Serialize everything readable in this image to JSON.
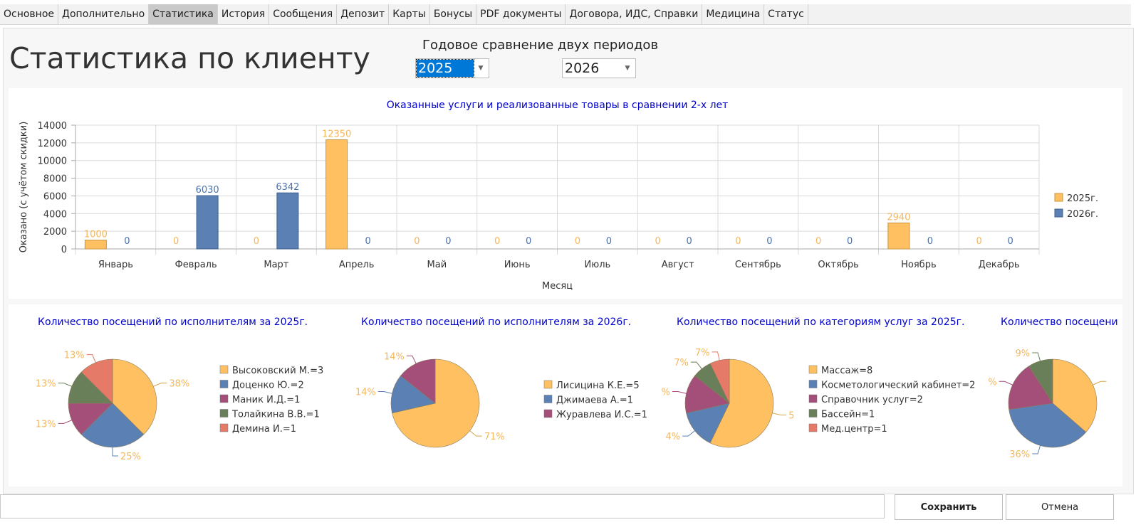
{
  "tabs": [
    {
      "label": "Основное",
      "active": false
    },
    {
      "label": "Дополнительно",
      "active": false
    },
    {
      "label": "Статистика",
      "active": true
    },
    {
      "label": "История",
      "active": false
    },
    {
      "label": "Сообщения",
      "active": false
    },
    {
      "label": "Депозит",
      "active": false
    },
    {
      "label": "Карты",
      "active": false
    },
    {
      "label": "Бонусы",
      "active": false
    },
    {
      "label": "PDF документы",
      "active": false
    },
    {
      "label": "Договора, ИДС, Справки",
      "active": false
    },
    {
      "label": "Медицина",
      "active": false
    },
    {
      "label": "Статус",
      "active": false
    }
  ],
  "header": {
    "title": "Статистика по клиенту",
    "compare_title": "Годовое сравнение двух периодов",
    "year1": "2025",
    "year2": "2026"
  },
  "colors": {
    "series1": "#ffc061",
    "series2": "#5b80b4",
    "title_blue": "#0000cc",
    "series1_label": "#f5b75c",
    "series2_label": "#4a72ad"
  },
  "chart_data": [
    {
      "type": "bar",
      "title": "Оказанные услуги и реализованные товары в сравнении 2-х лет",
      "xlabel": "Месяц",
      "ylabel": "Оказано (с учётом скидки)",
      "ylim": [
        0,
        14000
      ],
      "yticks": [
        "0",
        "2000",
        "4000",
        "6000",
        "8000",
        "10000",
        "12000",
        "14000"
      ],
      "categories": [
        "Январь",
        "Февраль",
        "Март",
        "Апрель",
        "Май",
        "Июнь",
        "Июль",
        "Август",
        "Сентябрь",
        "Октябрь",
        "Ноябрь",
        "Декабрь"
      ],
      "series": [
        {
          "name": "2025г.",
          "values": [
            1000,
            0,
            0,
            12350,
            0,
            0,
            0,
            0,
            0,
            0,
            2940,
            0
          ]
        },
        {
          "name": "2026г.",
          "values": [
            0,
            6030,
            6342,
            0,
            0,
            0,
            0,
            0,
            0,
            0,
            0,
            0
          ]
        }
      ],
      "grid": true,
      "legend": "right"
    },
    {
      "type": "pie",
      "title": "Количество посещений по исполнителям за 2025г.",
      "slices": [
        {
          "name": "Высоковский М.=3",
          "value": 3,
          "label": "38%",
          "color": "#ffc061"
        },
        {
          "name": "Доценко Ю.=2",
          "value": 2,
          "label": "25%",
          "color": "#5b80b4"
        },
        {
          "name": "Маник И.Д.=1",
          "value": 1,
          "label": "13%",
          "color": "#a44e7a"
        },
        {
          "name": "Толайкина В.В.=1",
          "value": 1,
          "label": "13%",
          "color": "#697f5a"
        },
        {
          "name": "Демина И.=1",
          "value": 1,
          "label": "13%",
          "color": "#e57a68"
        }
      ]
    },
    {
      "type": "pie",
      "title": "Количество посещений по исполнителям за 2026г.",
      "slices": [
        {
          "name": "Лисицина К.Е.=5",
          "value": 5,
          "label": "71%",
          "color": "#ffc061"
        },
        {
          "name": "Джимаева А.=1",
          "value": 1,
          "label": "14%",
          "color": "#5b80b4"
        },
        {
          "name": "Журавлева И.С.=1",
          "value": 1,
          "label": "14%",
          "color": "#a44e7a"
        }
      ]
    },
    {
      "type": "pie",
      "title": "Количество посещений по категориям услуг за 2025г.",
      "slices": [
        {
          "name": "Массаж=8",
          "value": 8,
          "label": "5",
          "color": "#ffc061"
        },
        {
          "name": "Косметологический кабинет=2",
          "value": 2,
          "label": "4%",
          "color": "#5b80b4"
        },
        {
          "name": "Справочник услуг=2",
          "value": 2,
          "label": "%",
          "color": "#a44e7a"
        },
        {
          "name": "Бассейн=1",
          "value": 1,
          "label": "7%",
          "color": "#697f5a"
        },
        {
          "name": "Мед.центр=1",
          "value": 1,
          "label": "7%",
          "color": "#e57a68"
        }
      ]
    },
    {
      "type": "pie",
      "title": "Количество посещени",
      "slices": [
        {
          "name": "",
          "value": 4,
          "label": "",
          "color": "#ffc061"
        },
        {
          "name": "",
          "value": 4,
          "label": "36%",
          "color": "#5b80b4"
        },
        {
          "name": "",
          "value": 2,
          "label": "%",
          "color": "#a44e7a"
        },
        {
          "name": "",
          "value": 1,
          "label": "9%",
          "color": "#697f5a"
        }
      ]
    }
  ],
  "footer": {
    "save_label": "Сохранить",
    "cancel_label": "Отмена",
    "comment_value": ""
  }
}
